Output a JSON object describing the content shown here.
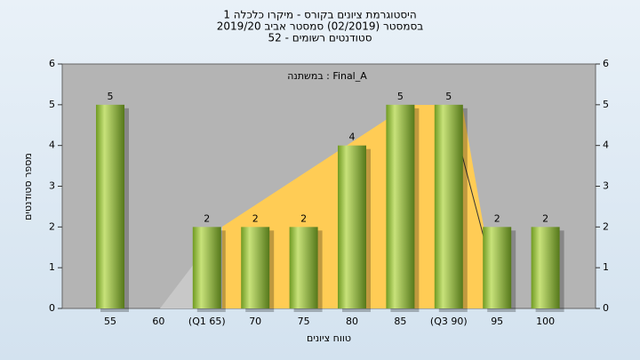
{
  "chart_data": {
    "type": "bar",
    "title": [
      "היסטוגרמת ציונים בקורס - מיקרו כלכלה 1",
      "בסמסטר (02/2019) סמסטר אביב 2019/20",
      "סטודנטים רשומים - 52"
    ],
    "annotation": "במשתנה : Final_A",
    "x_label": "טווח ציונים",
    "y_label": "מספר סטודנטים",
    "categories": [
      "55",
      "60",
      "(Q1 65)",
      "70",
      "75",
      "80",
      "85",
      "(Q3 90)",
      "95",
      "100"
    ],
    "values": [
      5,
      0,
      2,
      2,
      2,
      4,
      5,
      5,
      2,
      2
    ],
    "color": "#9bc443",
    "ylim": [
      0,
      6
    ],
    "yticks": [
      0,
      1,
      2,
      3,
      4,
      5,
      6
    ],
    "y2lim": [
      0,
      6
    ],
    "y2ticks": [
      0,
      1,
      2,
      3,
      4,
      5,
      6
    ]
  }
}
